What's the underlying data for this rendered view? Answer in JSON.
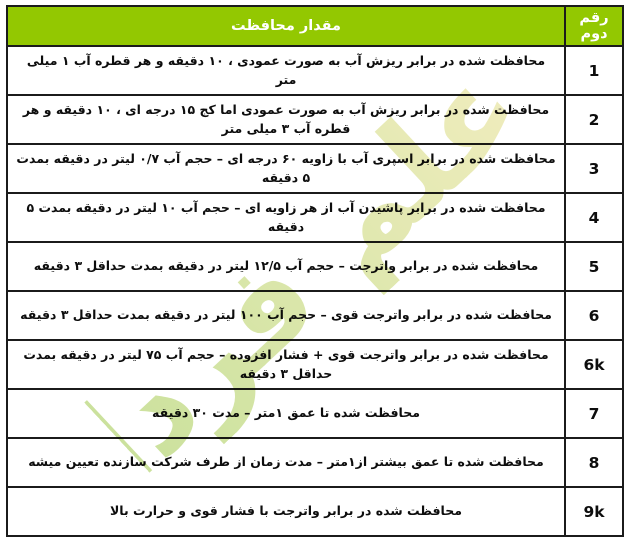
{
  "colors": {
    "accent": "#93c801",
    "border": "#1b1b1b",
    "text": "#0d0d0d",
    "header-text": "#ffffff",
    "wm-start": "#b5d573",
    "wm-end": "#e8e4a0"
  },
  "watermark": {
    "text": "علم فردا"
  },
  "table": {
    "header": {
      "protection_label": "مقدار محافظت",
      "digit_label": "رقم دوم"
    },
    "rows": [
      {
        "digit": "1",
        "description": "محافظت شده در برابر ریزش آب به صورت عمودی ، ۱۰ دقیقه و هر قطره آب ۱ میلی متر"
      },
      {
        "digit": "2",
        "description": "محافظت شده در برابر ریزش آب به صورت عمودی اما کج ۱۵ درجه ای ، ۱۰ دقیقه و هر قطره آب ۳ میلی متر"
      },
      {
        "digit": "3",
        "description": "محافظت شده در برابر اسپری آب با زاویه ۶۰ درجه ای – حجم آب ۰/۷ لیتر در دقیقه بمدت ۵ دقیقه"
      },
      {
        "digit": "4",
        "description": "محافظت شده در برابر پاشیدن آب از هر زاویه ای – حجم آب ۱۰ لیتر در دقیقه بمدت ۵ دقیقه"
      },
      {
        "digit": "5",
        "description": "محافظت شده در برابر واترجت – حجم آب ۱۲/۵ لیتر در دقیقه بمدت حداقل ۳ دقیقه"
      },
      {
        "digit": "6",
        "description": "محافظت شده در برابر واترجت قوی – حجم آب ۱۰۰ لیتر در دقیقه بمدت حداقل ۳ دقیقه"
      },
      {
        "digit": "6k",
        "description": "محافظت شده در برابر واترجت قوی + فشار افزوده – حجم آب ۷۵ لیتر در دقیقه بمدت حداقل ۳ دقیقه"
      },
      {
        "digit": "7",
        "description": "محافظت شده تا عمق ۱متر – مدت ۳۰ دقیقه"
      },
      {
        "digit": "8",
        "description": "محافظت شده تا عمق بیشتر از۱متر – مدت زمان از طرف شرکت سازنده تعیین میشه"
      },
      {
        "digit": "9k",
        "description": "محافظت شده در برابر واترجت با فشار قوی و حرارت بالا"
      }
    ]
  }
}
